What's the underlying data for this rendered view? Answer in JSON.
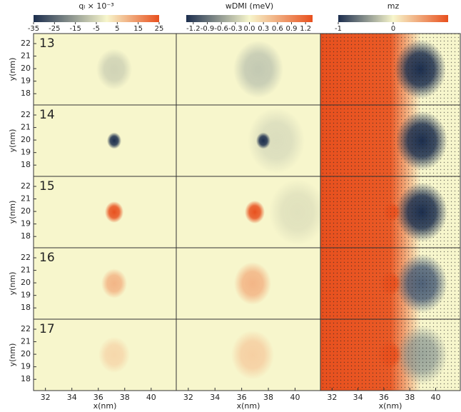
{
  "chart_data": {
    "type": "heatmap",
    "row_labels": [
      "13",
      "14",
      "15",
      "16",
      "17"
    ],
    "xlabel": "x(nm)",
    "ylabel": "y(nm)",
    "xlim": [
      31.1,
      41.9
    ],
    "xticks": [
      32,
      34,
      36,
      38,
      40
    ],
    "ylim": [
      17.1,
      22.8
    ],
    "yticks": [
      18,
      19,
      20,
      21,
      22
    ],
    "colorbars": [
      {
        "label": "qₗ × 10⁻³",
        "lim": [
          -35,
          25
        ],
        "ticks": [
          -35,
          -25,
          -15,
          -5,
          5,
          15,
          25
        ],
        "colors": [
          "#1c2e4e",
          "#f7f6cc",
          "#e8501e"
        ]
      },
      {
        "label": "wDMI (meV)",
        "lim": [
          -1.35,
          1.35
        ],
        "ticks": [
          -1.2,
          -0.9,
          -0.6,
          -0.3,
          {
            "value": 0,
            "label": "0.0"
          },
          0.3,
          0.6,
          0.9,
          1.2
        ],
        "colors": [
          "#1c2e4e",
          "#f7f6cc",
          "#e8501e"
        ]
      },
      {
        "label": "mz",
        "lim": [
          -1,
          1
        ],
        "ticks": [
          -1,
          0
        ],
        "colors": [
          "#1c2e4e",
          "#f7f6cc",
          "#e8501e"
        ]
      }
    ]
  }
}
